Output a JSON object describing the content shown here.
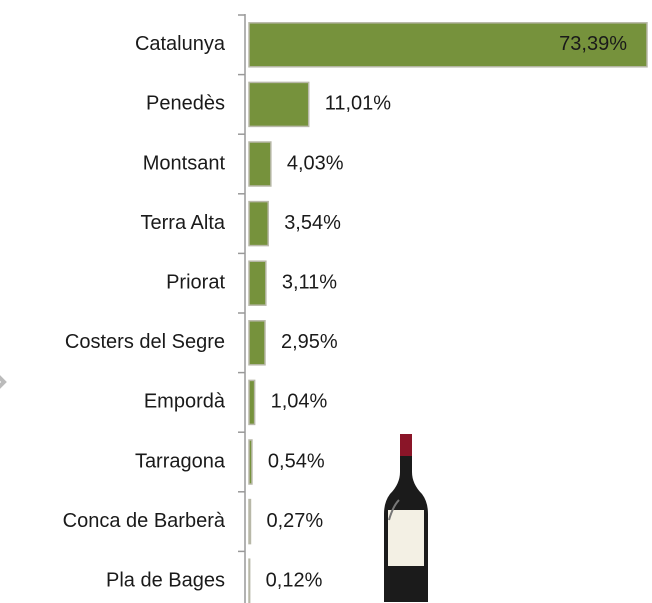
{
  "chart_data": {
    "type": "bar",
    "orientation": "horizontal",
    "categories": [
      "Catalunya",
      "Penedès",
      "Montsant",
      "Terra Alta",
      "Priorat",
      "Costers del Segre",
      "Empordà",
      "Tarragona",
      "Conca de Barberà",
      "Pla de Bages"
    ],
    "values": [
      73.39,
      11.01,
      4.03,
      3.54,
      3.11,
      2.95,
      1.04,
      0.54,
      0.27,
      0.12
    ],
    "value_labels": [
      "73,39%",
      "11,01%",
      "4,03%",
      "3,54%",
      "3,11%",
      "2,95%",
      "1,04%",
      "0,54%",
      "0,27%",
      "0,12%"
    ],
    "color": "#76923c"
  }
}
